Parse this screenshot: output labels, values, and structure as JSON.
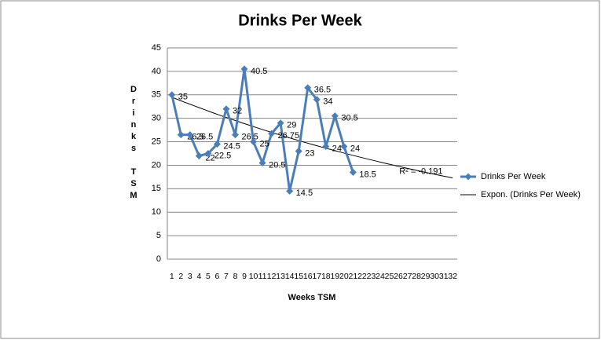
{
  "chart_data": {
    "type": "line",
    "title": "Drinks Per Week",
    "xlabel": "Weeks TSM",
    "ylabel": "Drinks TSM",
    "categories": [
      "1",
      "2",
      "3",
      "4",
      "5",
      "6",
      "7",
      "8",
      "9",
      "10",
      "11",
      "12",
      "13",
      "14",
      "15",
      "16",
      "17",
      "18",
      "19",
      "20",
      "21",
      "22",
      "23",
      "24",
      "25",
      "26",
      "27",
      "28",
      "29",
      "30",
      "31",
      "32"
    ],
    "series": [
      {
        "name": "Drinks Per Week",
        "color": "#4a7ebb",
        "values": [
          35,
          26.5,
          26.5,
          22,
          22.5,
          24.5,
          32,
          26.5,
          40.5,
          25,
          20.5,
          26.75,
          29,
          14.5,
          23,
          36.5,
          34,
          24,
          30.5,
          24,
          18.5,
          null,
          null,
          null,
          null,
          null,
          null,
          null,
          null,
          null,
          null,
          null
        ]
      }
    ],
    "trendline": {
      "name": "Expon. (Drinks Per Week)",
      "color": "#000000",
      "start": 34.5,
      "end": 17.3,
      "r2_label": "R² = -0.191"
    },
    "ylim": [
      0,
      45
    ],
    "yticks": [
      0,
      5,
      10,
      15,
      20,
      25,
      30,
      35,
      40,
      45
    ],
    "grid": true,
    "legend": "right"
  }
}
